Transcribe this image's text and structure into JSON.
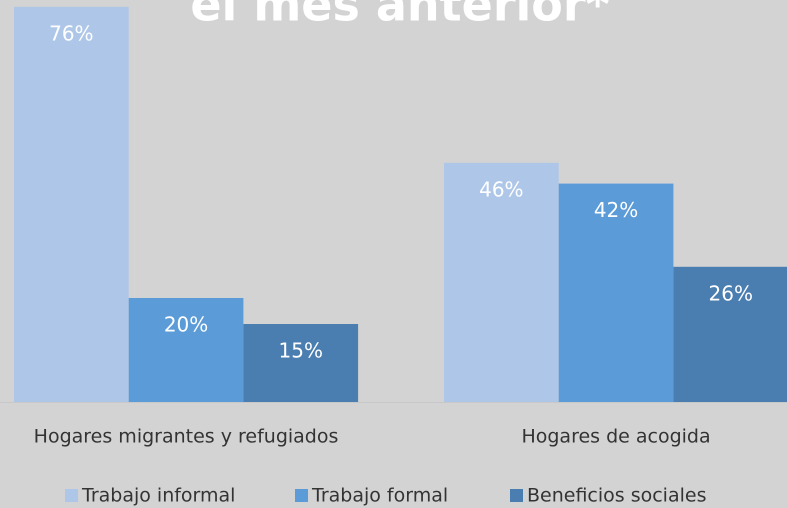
{
  "chart_data": {
    "type": "bar",
    "title": "el mes anterior*",
    "categories": [
      "Hogares migrantes y refugiados",
      "Hogares de acogida"
    ],
    "series": [
      {
        "name": "Trabajo informal",
        "color": "#aec7e8",
        "values": [
          76,
          46
        ],
        "value_labels": [
          "76%",
          "46%"
        ]
      },
      {
        "name": "Trabajo formal",
        "color": "#5b9bd7",
        "values": [
          20,
          42
        ],
        "value_labels": [
          "20%",
          "42%"
        ]
      },
      {
        "name": "Beneficios sociales",
        "color": "#4a7eb1",
        "values": [
          15,
          26
        ],
        "value_labels": [
          "15%",
          "26%"
        ]
      }
    ]
  }
}
